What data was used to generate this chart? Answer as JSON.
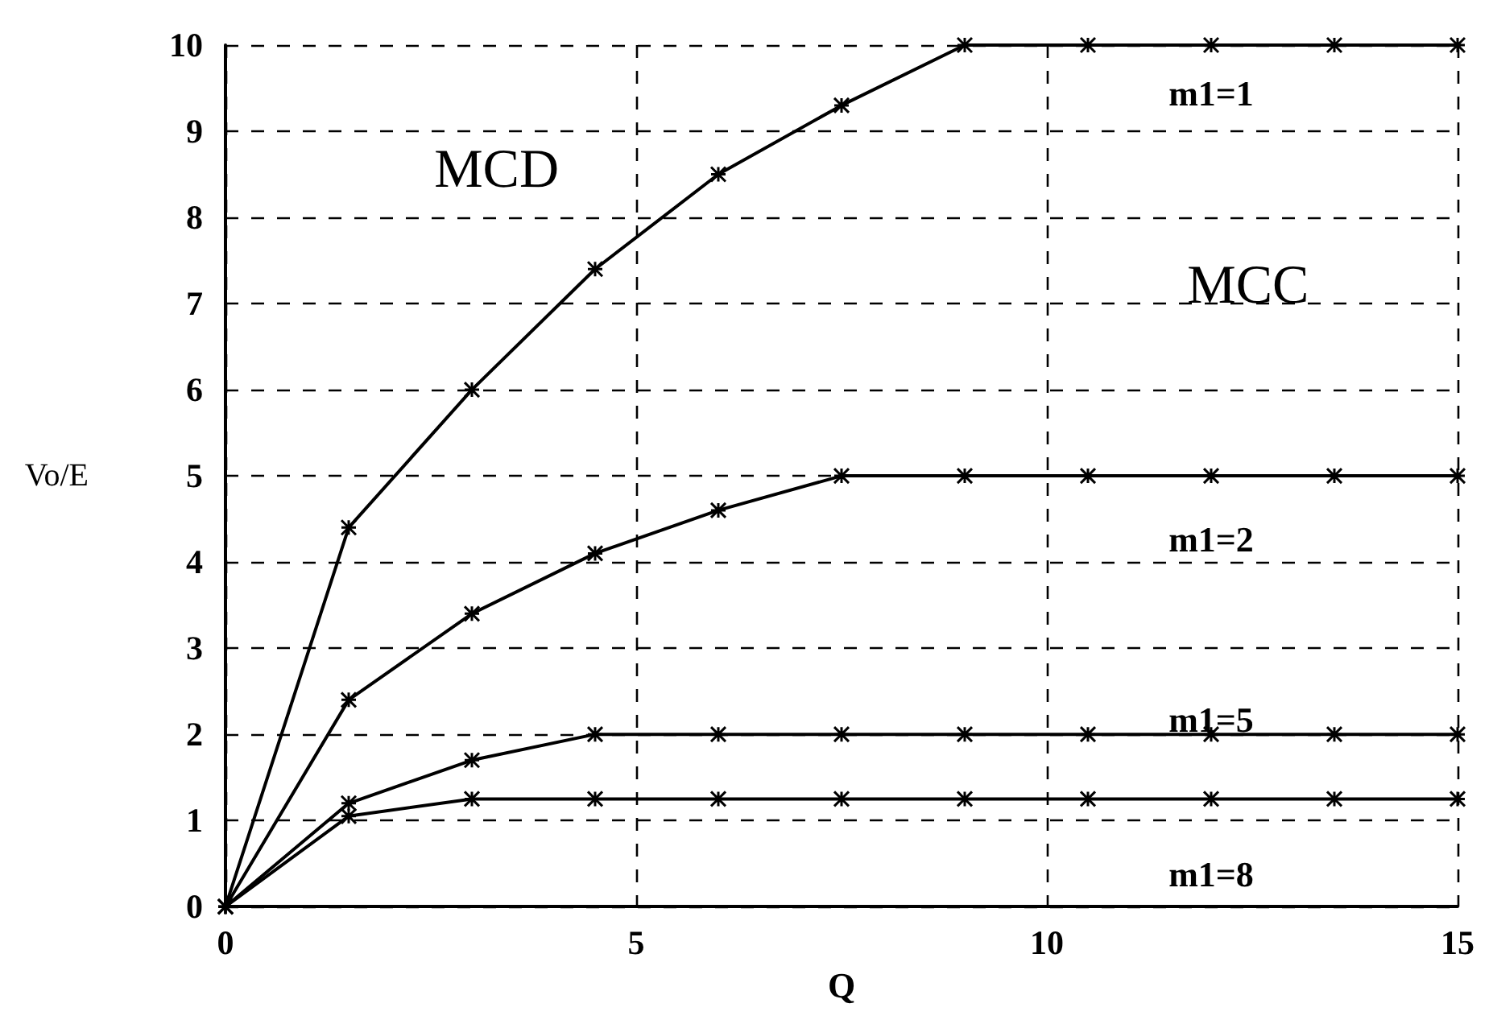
{
  "chart_data": {
    "type": "line",
    "xlabel": "Q",
    "ylabel": "Vo/E",
    "x": [
      0,
      1.5,
      3,
      4.5,
      6,
      7.5,
      9,
      10.5,
      12,
      13.5,
      15
    ],
    "series": [
      {
        "name": "m1=1",
        "color": "#000000",
        "values": [
          0,
          4.4,
          6.0,
          7.4,
          8.5,
          9.3,
          10,
          10,
          10,
          10,
          10
        ]
      },
      {
        "name": "m1=2",
        "color": "#000000",
        "values": [
          0,
          2.4,
          3.4,
          4.1,
          4.6,
          5,
          5,
          5,
          5,
          5,
          5
        ]
      },
      {
        "name": "m1=5",
        "color": "#000000",
        "values": [
          0,
          1.2,
          1.7,
          2,
          2,
          2,
          2,
          2,
          2,
          2,
          2
        ]
      },
      {
        "name": "m1=8",
        "color": "#000000",
        "values": [
          0,
          1.05,
          1.25,
          1.25,
          1.25,
          1.25,
          1.25,
          1.25,
          1.25,
          1.25,
          1.25
        ]
      }
    ],
    "annotations": [
      "MCD",
      "MCC"
    ],
    "xlim": [
      0,
      15
    ],
    "xticks": [
      0,
      5,
      10,
      15
    ],
    "ylim": [
      0,
      10
    ],
    "yticks": [
      0,
      1,
      2,
      3,
      4,
      5,
      6,
      7,
      8,
      9,
      10
    ],
    "grid": true,
    "marker": "cross",
    "line_style": "solid",
    "legend": false
  }
}
